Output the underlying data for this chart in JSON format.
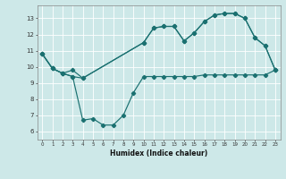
{
  "xlabel": "Humidex (Indice chaleur)",
  "xlim": [
    -0.5,
    23.5
  ],
  "ylim": [
    5.5,
    13.8
  ],
  "xticks": [
    0,
    1,
    2,
    3,
    4,
    5,
    6,
    7,
    8,
    9,
    10,
    11,
    12,
    13,
    14,
    15,
    16,
    17,
    18,
    19,
    20,
    21,
    22,
    23
  ],
  "yticks": [
    6,
    7,
    8,
    9,
    10,
    11,
    12,
    13
  ],
  "bg_color": "#cde8e8",
  "line_color": "#1a7070",
  "grid_color": "#ffffff",
  "line1_x": [
    0,
    1,
    2,
    3,
    4,
    5,
    6,
    7,
    8,
    9,
    10,
    11,
    12,
    13,
    14,
    15,
    16,
    17,
    18,
    19,
    20,
    21,
    22,
    23
  ],
  "line1_y": [
    10.8,
    9.9,
    9.6,
    9.4,
    6.7,
    6.8,
    6.4,
    6.4,
    7.0,
    8.4,
    9.4,
    9.4,
    9.4,
    9.4,
    9.4,
    9.4,
    9.5,
    9.5,
    9.5,
    9.5,
    9.5,
    9.5,
    9.5,
    9.8
  ],
  "line2_x": [
    0,
    1,
    2,
    3,
    4,
    10,
    11,
    12,
    13,
    14,
    15,
    16,
    17,
    18,
    19,
    20,
    21,
    22,
    23
  ],
  "line2_y": [
    10.8,
    9.9,
    9.6,
    9.8,
    9.3,
    11.5,
    12.4,
    12.5,
    12.5,
    11.6,
    12.1,
    12.8,
    13.2,
    13.3,
    13.3,
    13.0,
    11.8,
    11.3,
    9.8
  ],
  "line3_x": [
    0,
    1,
    2,
    3,
    4,
    10,
    11,
    12,
    13,
    14,
    15,
    16,
    17,
    18,
    19,
    20,
    21,
    22,
    23
  ],
  "line3_y": [
    10.8,
    9.9,
    9.6,
    9.4,
    9.3,
    11.5,
    12.4,
    12.5,
    12.5,
    11.6,
    12.1,
    12.8,
    13.2,
    13.3,
    13.3,
    13.0,
    11.8,
    11.3,
    9.8
  ]
}
